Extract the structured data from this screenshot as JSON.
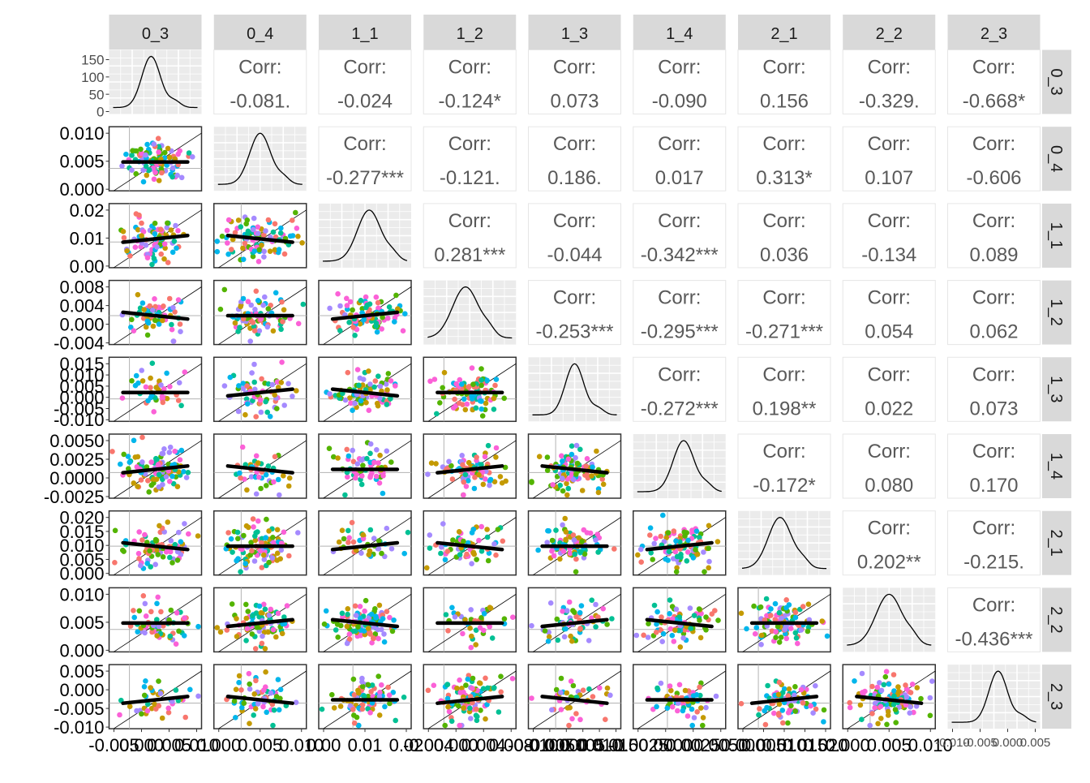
{
  "chart_data": {
    "type": "scatterplot-matrix",
    "variables": [
      "0_3",
      "0_4",
      "1_1",
      "1_2",
      "1_3",
      "1_4",
      "2_1",
      "2_2",
      "2_3"
    ],
    "corr_label": "Corr:",
    "correlations": [
      [
        "",
        "-0.081.",
        "-0.024",
        "-0.124*",
        "0.073",
        "-0.090",
        "0.156",
        "-0.329.",
        "-0.668*"
      ],
      [
        "",
        "",
        "-0.277***",
        "-0.121.",
        "0.186.",
        "0.017",
        "0.313*",
        "0.107",
        "-0.606"
      ],
      [
        "",
        "",
        "",
        "0.281***",
        "-0.044",
        "-0.342***",
        "0.036",
        "-0.134",
        "0.089"
      ],
      [
        "",
        "",
        "",
        "",
        "-0.253***",
        "-0.295***",
        "-0.271***",
        "0.054",
        "0.062"
      ],
      [
        "",
        "",
        "",
        "",
        "",
        "-0.272***",
        "0.198**",
        "0.022",
        "0.073"
      ],
      [
        "",
        "",
        "",
        "",
        "",
        "",
        "-0.172*",
        "0.080",
        "0.170"
      ],
      [
        "",
        "",
        "",
        "",
        "",
        "",
        "",
        "0.202**",
        "-0.215."
      ],
      [
        "",
        "",
        "",
        "",
        "",
        "",
        "",
        "",
        "-0.436***"
      ]
    ],
    "y_ticks": [
      [
        "150",
        "100",
        "50",
        "0"
      ],
      [
        "0.010",
        "0.005",
        "0.000"
      ],
      [
        "0.02",
        "0.01",
        "0.00"
      ],
      [
        "0.008",
        "0.004",
        "0.000",
        "-0.004"
      ],
      [
        "0.015",
        "0.010",
        "0.005",
        "0.000",
        "-0.005",
        "-0.010"
      ],
      [
        "0.0050",
        "0.0025",
        "0.0000",
        "-0.0025"
      ],
      [
        "0.020",
        "0.015",
        "0.010",
        "0.005",
        "0.000"
      ],
      [
        "0.010",
        "0.005",
        "0.000"
      ],
      [
        "0.005",
        "0.000",
        "-0.005",
        "-0.010"
      ]
    ],
    "x_ticks": [
      [
        "-0.005",
        "0.000",
        "0.005",
        "0.010"
      ],
      [
        "0.000",
        "0.005",
        "0.010"
      ],
      [
        "0.00",
        "0.01",
        "0.02"
      ],
      [
        "-0.004",
        "0.000",
        "0.004",
        "0.008"
      ],
      [
        "-0.010",
        "-0.005",
        "0.000",
        "0.005",
        "0.010",
        "0.015"
      ],
      [
        "-0.0025",
        "0.0000",
        "0.0025",
        "0.0050"
      ],
      [
        "0.000",
        "0.005",
        "0.010",
        "0.015",
        "0.020"
      ],
      [
        "0.000",
        "0.005",
        "0.010"
      ],
      [
        "-0.010",
        "-0.005",
        "0.000",
        "0.005"
      ]
    ],
    "point_colors": [
      "#F8766D",
      "#C49A00",
      "#53B400",
      "#00C094",
      "#00B6EB",
      "#A58AFF",
      "#FB61D7"
    ],
    "fit_line_color": "#000000",
    "strip_fill": "#D9D9D9",
    "panel_background": "#EBEBEB",
    "panel_border_color": "#333333",
    "corr_text_color": "#595959"
  }
}
